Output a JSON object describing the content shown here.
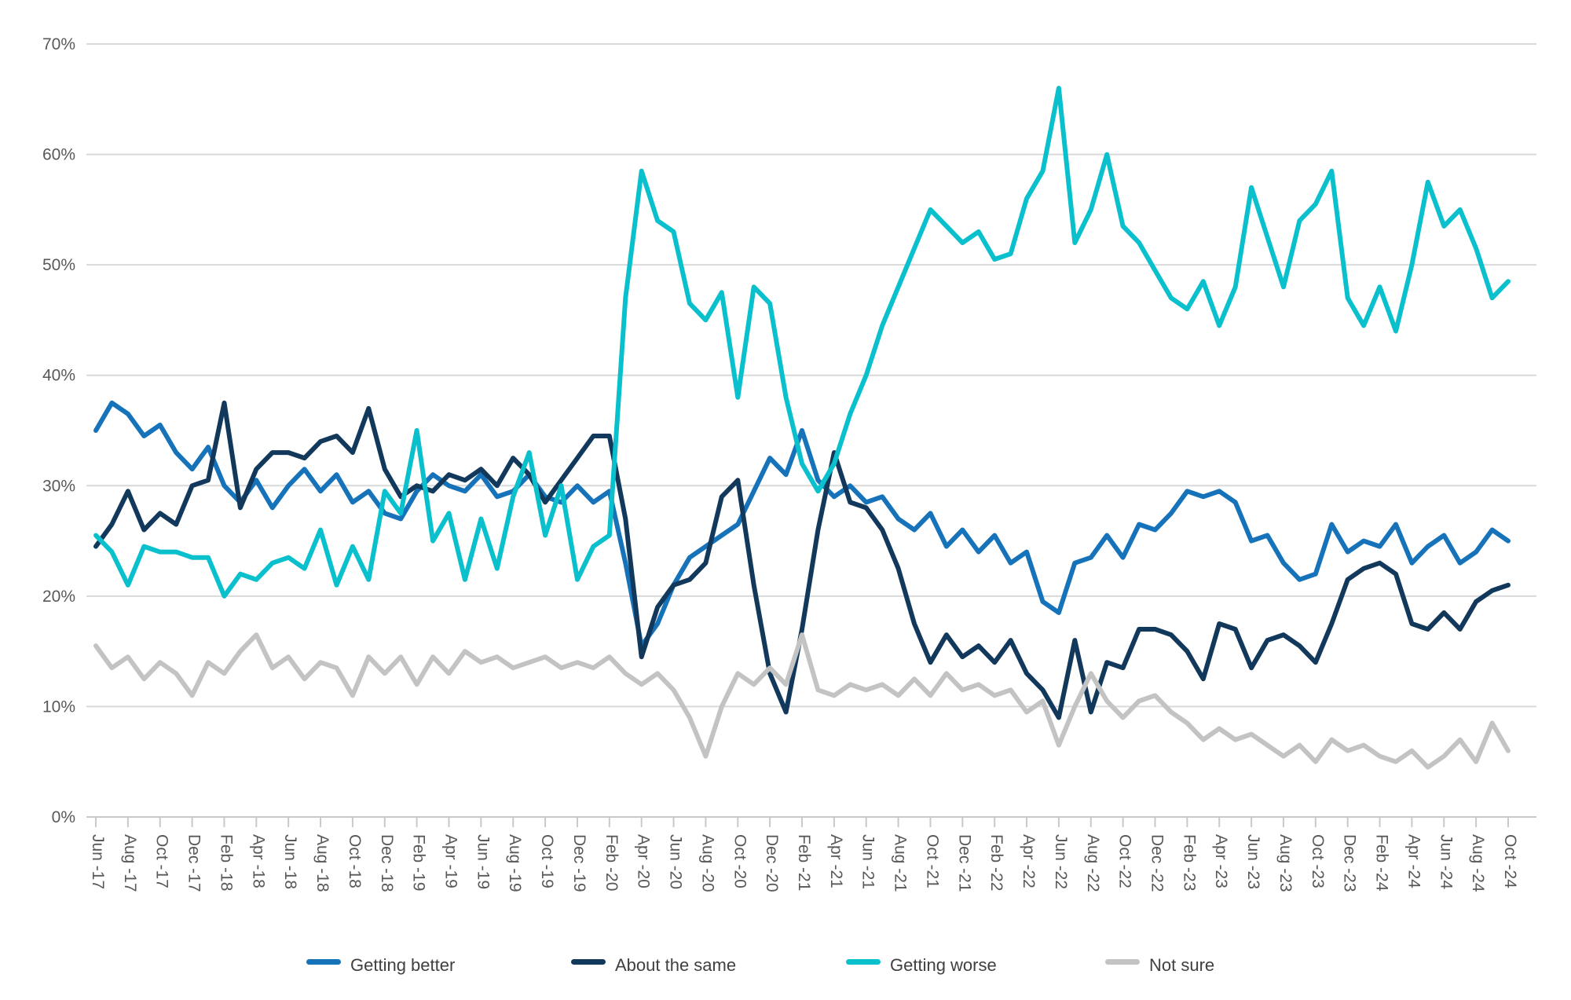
{
  "chart_data": {
    "type": "line",
    "title": "",
    "xlabel": "",
    "ylabel": "",
    "grid": "horizontal gridlines on, light gray",
    "legend_position": "bottom-center",
    "y_axis": {
      "min": 0,
      "max": 70,
      "tick_interval": 10,
      "tick_labels": [
        "0%",
        "10%",
        "20%",
        "30%",
        "40%",
        "50%",
        "60%",
        "70%"
      ],
      "unit": "%"
    },
    "x_axis": {
      "start_month": "Jun-17",
      "end_month": "Oct-24",
      "label_interval": "every 2 months",
      "tick_labels": [
        "Jun -17",
        "Aug -17",
        "Oct -17",
        "Dec -17",
        "Feb -18",
        "Apr -18",
        "Jun -18",
        "Aug -18",
        "Oct -18",
        "Dec -18",
        "Feb -19",
        "Apr -19",
        "Jun -19",
        "Aug -19",
        "Oct -19",
        "Dec -19",
        "Feb -20",
        "Apr -20",
        "Jun -20",
        "Aug -20",
        "Oct -20",
        "Dec -20",
        "Feb -21",
        "Apr -21",
        "Jun -21",
        "Aug -21",
        "Oct -21",
        "Dec -21",
        "Feb -22",
        "Apr -22",
        "Jun -22",
        "Aug -22",
        "Oct -22",
        "Dec -22",
        "Feb -23",
        "Apr -23",
        "Jun -23",
        "Aug -23",
        "Oct -23",
        "Dec -23",
        "Feb -24",
        "Apr -24",
        "Jun -24",
        "Aug -24",
        "Oct -24"
      ]
    },
    "sampling_note": "values estimated from plot at monthly resolution, Jun-2017 through Oct-2024 (89 points per series)",
    "series": [
      {
        "name": "Getting better",
        "color": "#1673B9",
        "values": [
          35,
          37.5,
          36.5,
          34.5,
          35.5,
          33,
          31.5,
          33.5,
          30,
          28.5,
          30.5,
          28,
          30,
          31.5,
          29.5,
          31,
          28.5,
          29.5,
          27.5,
          27,
          29.5,
          31,
          30,
          29.5,
          31,
          29,
          29.5,
          31,
          29,
          28.5,
          30,
          28.5,
          29.5,
          23,
          15.5,
          17.5,
          21,
          23.5,
          24.5,
          25.5,
          26.5,
          29.5,
          32.5,
          31,
          35,
          30.5,
          29,
          30,
          28.5,
          29,
          27,
          26,
          27.5,
          24.5,
          26,
          24,
          25.5,
          23,
          24,
          19.5,
          18.5,
          23,
          23.5,
          25.5,
          23.5,
          26.5,
          26,
          27.5,
          29.5,
          29,
          29.5,
          28.5,
          25,
          25.5,
          23,
          21.5,
          22,
          26.5,
          24,
          25,
          24.5,
          26.5,
          23,
          24.5,
          25.5,
          23,
          24,
          26,
          25
        ]
      },
      {
        "name": "About the same",
        "color": "#12395B",
        "values": [
          24.5,
          26.5,
          29.5,
          26,
          27.5,
          26.5,
          30,
          30.5,
          37.5,
          28,
          31.5,
          33,
          33,
          32.5,
          34,
          34.5,
          33,
          37,
          31.5,
          29,
          30,
          29.5,
          31,
          30.5,
          31.5,
          30,
          32.5,
          31,
          28.5,
          30.5,
          32.5,
          34.5,
          34.5,
          27,
          14.5,
          19,
          21,
          21.5,
          23,
          29,
          30.5,
          21,
          13,
          9.5,
          17,
          26,
          33,
          28.5,
          28,
          26,
          22.5,
          17.5,
          14,
          16.5,
          14.5,
          15.5,
          14,
          16,
          13,
          11.5,
          9,
          16,
          9.5,
          14,
          13.5,
          17,
          17,
          16.5,
          15,
          12.5,
          17.5,
          17,
          13.5,
          16,
          16.5,
          15.5,
          14,
          17.5,
          21.5,
          22.5,
          23,
          22,
          17.5,
          17,
          18.5,
          17,
          19.5,
          20.5,
          21
        ]
      },
      {
        "name": "Getting worse",
        "color": "#0BC0CD",
        "values": [
          25.5,
          24,
          21,
          24.5,
          24,
          24,
          23.5,
          23.5,
          20,
          22,
          21.5,
          23,
          23.5,
          22.5,
          26,
          21,
          24.5,
          21.5,
          29.5,
          27.5,
          35,
          25,
          27.5,
          21.5,
          27,
          22.5,
          29,
          33,
          25.5,
          30,
          21.5,
          24.5,
          25.5,
          47,
          58.5,
          54,
          53,
          46.5,
          45,
          47.5,
          38,
          48,
          46.5,
          38,
          32,
          29.5,
          32,
          36.5,
          40,
          44.5,
          48,
          51.5,
          55,
          53.5,
          52,
          53,
          50.5,
          51,
          56,
          58.5,
          66,
          52,
          55,
          60,
          53.5,
          52,
          49.5,
          47,
          46,
          48.5,
          44.5,
          48,
          57,
          52.5,
          48,
          54,
          55.5,
          58.5,
          47,
          44.5,
          48,
          44,
          50,
          57.5,
          53.5,
          55,
          51.5,
          47,
          48.5
        ]
      },
      {
        "name": "Not sure",
        "color": "#C3C3C3",
        "values": [
          15.5,
          13.5,
          14.5,
          12.5,
          14,
          13,
          11,
          14,
          13,
          15,
          16.5,
          13.5,
          14.5,
          12.5,
          14,
          13.5,
          11,
          14.5,
          13,
          14.5,
          12,
          14.5,
          13,
          15,
          14,
          14.5,
          13.5,
          14,
          14.5,
          13.5,
          14,
          13.5,
          14.5,
          13,
          12,
          13,
          11.5,
          9,
          5.5,
          10,
          13,
          12,
          13.5,
          12,
          16.5,
          11.5,
          11,
          12,
          11.5,
          12,
          11,
          12.5,
          11,
          13,
          11.5,
          12,
          11,
          11.5,
          9.5,
          10.5,
          6.5,
          10,
          13,
          10.5,
          9,
          10.5,
          11,
          9.5,
          8.5,
          7,
          8,
          7,
          7.5,
          6.5,
          5.5,
          6.5,
          5,
          7,
          6,
          6.5,
          5.5,
          5,
          6,
          4.5,
          5.5,
          7,
          5,
          8.5,
          6
        ]
      }
    ],
    "colors": {
      "gridline": "#D9D9D9",
      "axis_line": "#C9C9C9",
      "tick_mark": "#C9C9C9",
      "axis_text": "#595959",
      "legend_text": "#404040"
    }
  }
}
